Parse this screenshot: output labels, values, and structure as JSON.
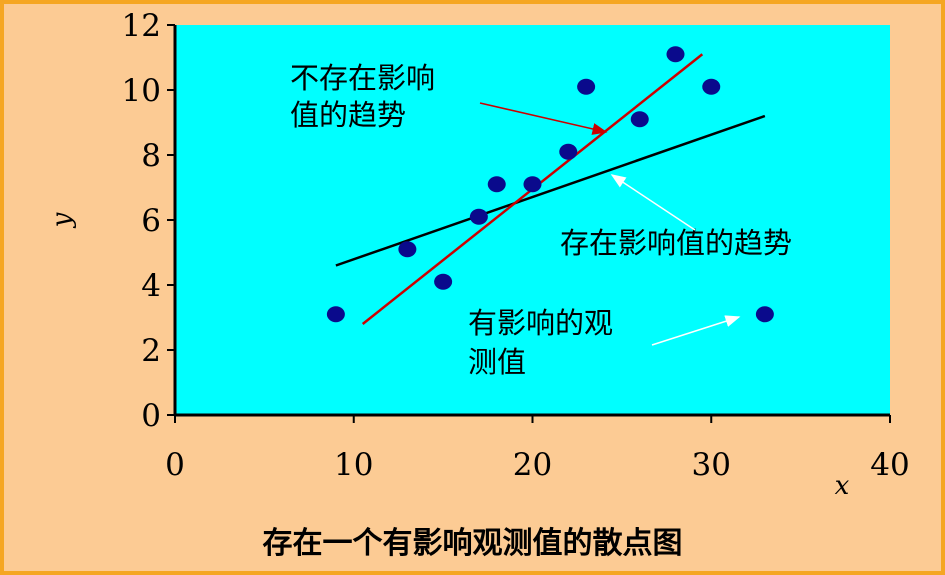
{
  "chart_data": {
    "type": "scatter",
    "xlabel": "x",
    "ylabel": "y",
    "xlim": [
      0,
      40
    ],
    "ylim": [
      0,
      12
    ],
    "x_ticks": [
      "0",
      "10",
      "20",
      "30",
      "40"
    ],
    "y_ticks": [
      "0",
      "2",
      "4",
      "6",
      "8",
      "10",
      "12"
    ],
    "grid": false,
    "points": [
      {
        "x": 9,
        "y": 3.1
      },
      {
        "x": 13,
        "y": 5.1
      },
      {
        "x": 15,
        "y": 4.1
      },
      {
        "x": 17,
        "y": 6.1
      },
      {
        "x": 18,
        "y": 7.1
      },
      {
        "x": 20,
        "y": 7.1
      },
      {
        "x": 22,
        "y": 8.1
      },
      {
        "x": 23,
        "y": 10.1
      },
      {
        "x": 26,
        "y": 9.1
      },
      {
        "x": 28,
        "y": 11.1
      },
      {
        "x": 30,
        "y": 10.1
      },
      {
        "x": 33,
        "y": 3.1
      }
    ],
    "lines": [
      {
        "x": [
          9,
          33
        ],
        "y": [
          4.6,
          9.2
        ]
      },
      {
        "x": [
          10.5,
          29.5
        ],
        "y": [
          2.8,
          11.1
        ]
      }
    ],
    "annotations": {
      "without_outlier": "不存在影响值的趋势",
      "with_outlier": "存在影响值的趋势",
      "outlier": "有影响的观测值"
    },
    "caption": "存在一个有影响观测值的散点图"
  },
  "colors": {
    "background": "#fccb94",
    "border": "#f5a623",
    "plot_area": "#00ffff",
    "points": "#0a0a8c",
    "trend_with_outlier": "#000000",
    "trend_without_outlier": "#cc0000",
    "arrow_red": "#cc0000",
    "arrow_white": "#ffffff"
  }
}
